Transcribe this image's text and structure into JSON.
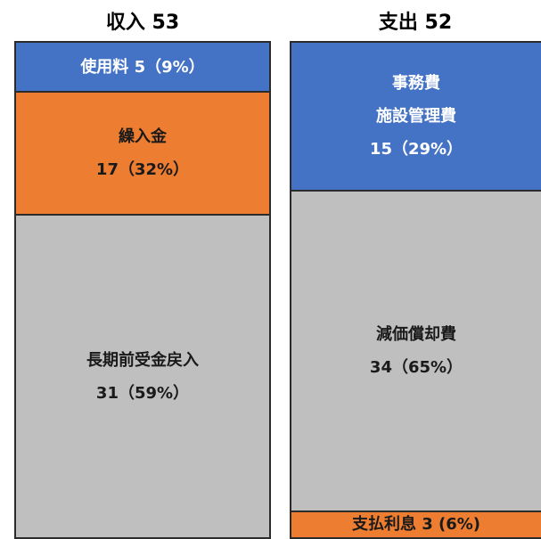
{
  "columns": [
    {
      "title": "収入 53",
      "blocks": [
        {
          "lines": [
            "使用料 5（9%）"
          ]
        },
        {
          "lines": [
            "繰入金",
            "17（32%）"
          ]
        },
        {
          "lines": [
            "長期前受金戻入",
            "31（59%）"
          ]
        }
      ]
    },
    {
      "title": "支出 52",
      "blocks": [
        {
          "lines": [
            "事務費",
            "施設管理費",
            "15（29%）"
          ]
        },
        {
          "lines": [
            "減価償却費",
            "34（65%）"
          ]
        },
        {
          "lines": [
            "支払利息 3 (6%)"
          ]
        }
      ]
    }
  ]
}
